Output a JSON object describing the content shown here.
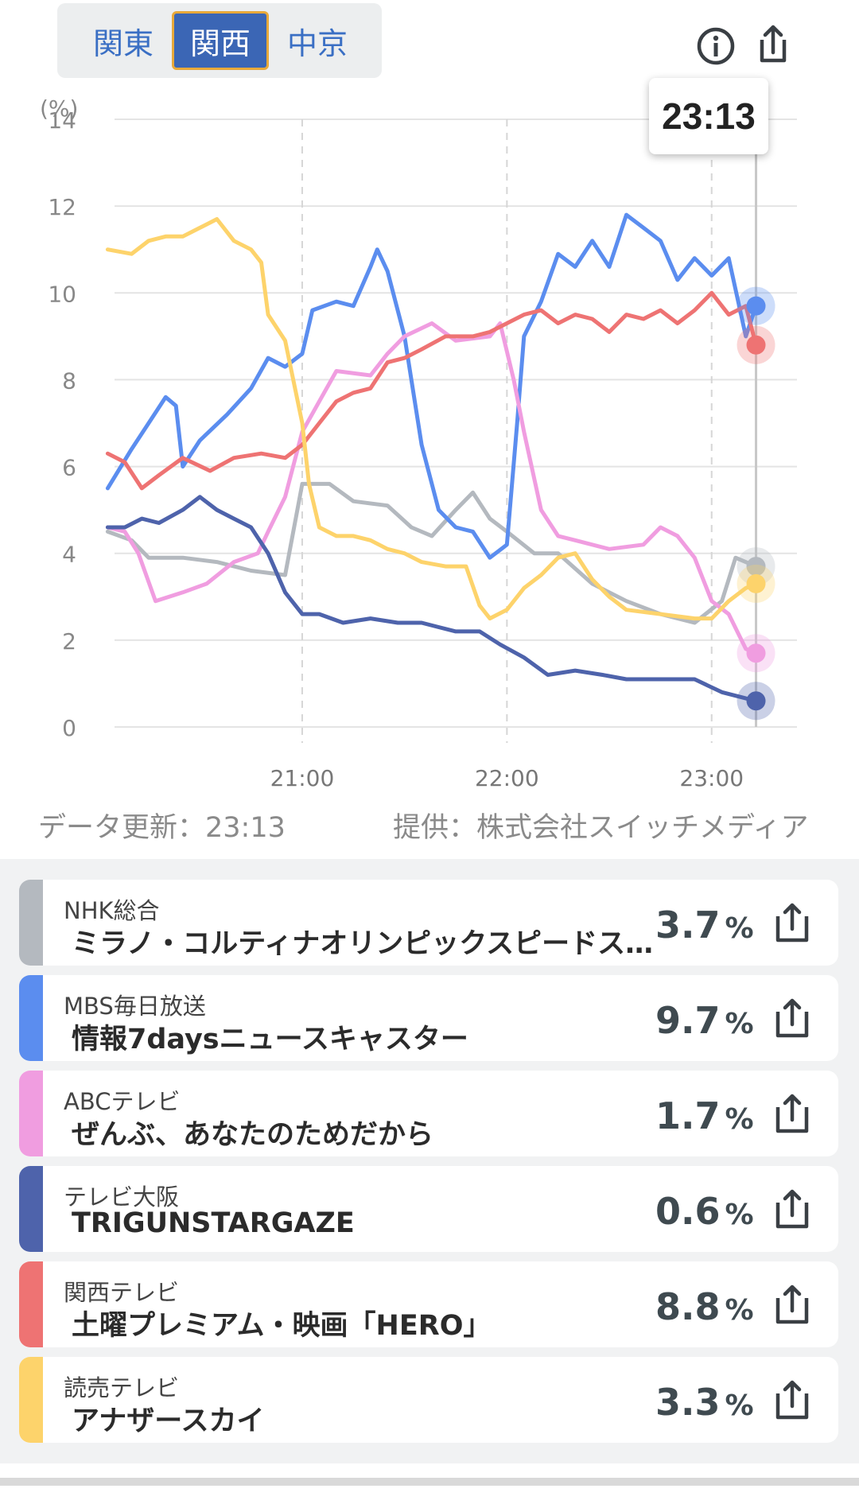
{
  "regions": {
    "tabs": [
      {
        "label": "関東",
        "active": false
      },
      {
        "label": "関西",
        "active": true
      },
      {
        "label": "中京",
        "active": false
      }
    ]
  },
  "tooltip": {
    "time": "23:13"
  },
  "chart_data": {
    "type": "line",
    "ylabel": "(%)",
    "ylim": [
      0,
      14
    ],
    "yticks": [
      0,
      2,
      4,
      6,
      8,
      10,
      12,
      14
    ],
    "xlim": [
      "20:05",
      "23:25"
    ],
    "xticks": [
      "21:00",
      "22:00",
      "23:00"
    ],
    "cursor_time": "23:13",
    "grid": true,
    "series": [
      {
        "name": "NHK総合",
        "color": "#b4b9bf",
        "points": [
          [
            "20:03",
            4.5
          ],
          [
            "20:10",
            4.3
          ],
          [
            "20:15",
            3.9
          ],
          [
            "20:25",
            3.9
          ],
          [
            "20:35",
            3.8
          ],
          [
            "20:45",
            3.6
          ],
          [
            "20:55",
            3.5
          ],
          [
            "21:00",
            5.6
          ],
          [
            "21:08",
            5.6
          ],
          [
            "21:15",
            5.2
          ],
          [
            "21:25",
            5.1
          ],
          [
            "21:32",
            4.6
          ],
          [
            "21:38",
            4.4
          ],
          [
            "21:45",
            5.0
          ],
          [
            "21:50",
            5.4
          ],
          [
            "21:55",
            4.8
          ],
          [
            "22:00",
            4.5
          ],
          [
            "22:08",
            4.0
          ],
          [
            "22:15",
            4.0
          ],
          [
            "22:25",
            3.3
          ],
          [
            "22:35",
            2.9
          ],
          [
            "22:45",
            2.6
          ],
          [
            "22:55",
            2.4
          ],
          [
            "23:03",
            2.9
          ],
          [
            "23:07",
            3.9
          ],
          [
            "23:13",
            3.7
          ]
        ]
      },
      {
        "name": "MBS毎日放送",
        "color": "#5b8def",
        "points": [
          [
            "20:03",
            5.5
          ],
          [
            "20:10",
            6.4
          ],
          [
            "20:15",
            7.0
          ],
          [
            "20:20",
            7.6
          ],
          [
            "20:23",
            7.4
          ],
          [
            "20:25",
            6.0
          ],
          [
            "20:30",
            6.6
          ],
          [
            "20:38",
            7.2
          ],
          [
            "20:45",
            7.8
          ],
          [
            "20:50",
            8.5
          ],
          [
            "20:55",
            8.3
          ],
          [
            "21:00",
            8.6
          ],
          [
            "21:03",
            9.6
          ],
          [
            "21:10",
            9.8
          ],
          [
            "21:15",
            9.7
          ],
          [
            "21:20",
            10.6
          ],
          [
            "21:22",
            11.0
          ],
          [
            "21:25",
            10.5
          ],
          [
            "21:30",
            9.0
          ],
          [
            "21:35",
            6.5
          ],
          [
            "21:40",
            5.0
          ],
          [
            "21:45",
            4.6
          ],
          [
            "21:50",
            4.5
          ],
          [
            "21:55",
            3.9
          ],
          [
            "22:00",
            4.2
          ],
          [
            "22:03",
            7.0
          ],
          [
            "22:05",
            9.0
          ],
          [
            "22:10",
            9.8
          ],
          [
            "22:15",
            10.9
          ],
          [
            "22:20",
            10.6
          ],
          [
            "22:25",
            11.2
          ],
          [
            "22:30",
            10.6
          ],
          [
            "22:35",
            11.8
          ],
          [
            "22:40",
            11.5
          ],
          [
            "22:45",
            11.2
          ],
          [
            "22:50",
            10.3
          ],
          [
            "22:55",
            10.8
          ],
          [
            "23:00",
            10.4
          ],
          [
            "23:05",
            10.8
          ],
          [
            "23:10",
            9.0
          ],
          [
            "23:13",
            9.7
          ]
        ]
      },
      {
        "name": "ABCテレビ",
        "color": "#f09de0",
        "points": [
          [
            "20:03",
            4.6
          ],
          [
            "20:08",
            4.5
          ],
          [
            "20:12",
            4.0
          ],
          [
            "20:17",
            2.9
          ],
          [
            "20:25",
            3.1
          ],
          [
            "20:32",
            3.3
          ],
          [
            "20:40",
            3.8
          ],
          [
            "20:47",
            4.0
          ],
          [
            "20:50",
            4.5
          ],
          [
            "20:55",
            5.3
          ],
          [
            "21:00",
            6.8
          ],
          [
            "21:05",
            7.5
          ],
          [
            "21:10",
            8.2
          ],
          [
            "21:20",
            8.1
          ],
          [
            "21:25",
            8.6
          ],
          [
            "21:30",
            9.0
          ],
          [
            "21:38",
            9.3
          ],
          [
            "21:45",
            8.9
          ],
          [
            "21:55",
            9.0
          ],
          [
            "21:58",
            9.3
          ],
          [
            "22:02",
            8.0
          ],
          [
            "22:05",
            6.8
          ],
          [
            "22:10",
            5.0
          ],
          [
            "22:15",
            4.4
          ],
          [
            "22:20",
            4.3
          ],
          [
            "22:30",
            4.1
          ],
          [
            "22:40",
            4.2
          ],
          [
            "22:45",
            4.6
          ],
          [
            "22:50",
            4.4
          ],
          [
            "22:55",
            3.9
          ],
          [
            "23:00",
            2.9
          ],
          [
            "23:05",
            2.6
          ],
          [
            "23:10",
            1.8
          ],
          [
            "23:13",
            1.7
          ]
        ]
      },
      {
        "name": "テレビ大阪",
        "color": "#4e63ab",
        "points": [
          [
            "20:03",
            4.6
          ],
          [
            "20:08",
            4.6
          ],
          [
            "20:13",
            4.8
          ],
          [
            "20:18",
            4.7
          ],
          [
            "20:25",
            5.0
          ],
          [
            "20:30",
            5.3
          ],
          [
            "20:35",
            5.0
          ],
          [
            "20:40",
            4.8
          ],
          [
            "20:45",
            4.6
          ],
          [
            "20:50",
            4.0
          ],
          [
            "20:55",
            3.1
          ],
          [
            "21:00",
            2.6
          ],
          [
            "21:05",
            2.6
          ],
          [
            "21:12",
            2.4
          ],
          [
            "21:20",
            2.5
          ],
          [
            "21:28",
            2.4
          ],
          [
            "21:35",
            2.4
          ],
          [
            "21:40",
            2.3
          ],
          [
            "21:45",
            2.2
          ],
          [
            "21:52",
            2.2
          ],
          [
            "21:58",
            1.9
          ],
          [
            "22:05",
            1.6
          ],
          [
            "22:12",
            1.2
          ],
          [
            "22:20",
            1.3
          ],
          [
            "22:28",
            1.2
          ],
          [
            "22:35",
            1.1
          ],
          [
            "22:45",
            1.1
          ],
          [
            "22:55",
            1.1
          ],
          [
            "23:03",
            0.8
          ],
          [
            "23:08",
            0.7
          ],
          [
            "23:13",
            0.6
          ]
        ]
      },
      {
        "name": "関西テレビ",
        "color": "#ee7373",
        "points": [
          [
            "20:03",
            6.3
          ],
          [
            "20:08",
            6.1
          ],
          [
            "20:13",
            5.5
          ],
          [
            "20:18",
            5.8
          ],
          [
            "20:25",
            6.2
          ],
          [
            "20:33",
            5.9
          ],
          [
            "20:40",
            6.2
          ],
          [
            "20:48",
            6.3
          ],
          [
            "20:55",
            6.2
          ],
          [
            "21:00",
            6.5
          ],
          [
            "21:05",
            7.0
          ],
          [
            "21:10",
            7.5
          ],
          [
            "21:15",
            7.7
          ],
          [
            "21:20",
            7.8
          ],
          [
            "21:25",
            8.4
          ],
          [
            "21:30",
            8.5
          ],
          [
            "21:35",
            8.7
          ],
          [
            "21:42",
            9.0
          ],
          [
            "21:50",
            9.0
          ],
          [
            "21:55",
            9.1
          ],
          [
            "22:00",
            9.3
          ],
          [
            "22:05",
            9.5
          ],
          [
            "22:10",
            9.6
          ],
          [
            "22:15",
            9.3
          ],
          [
            "22:20",
            9.5
          ],
          [
            "22:25",
            9.4
          ],
          [
            "22:30",
            9.1
          ],
          [
            "22:35",
            9.5
          ],
          [
            "22:40",
            9.4
          ],
          [
            "22:45",
            9.6
          ],
          [
            "22:50",
            9.3
          ],
          [
            "22:55",
            9.6
          ],
          [
            "23:00",
            10.0
          ],
          [
            "23:05",
            9.5
          ],
          [
            "23:10",
            9.7
          ],
          [
            "23:13",
            8.8
          ]
        ]
      },
      {
        "name": "読売テレビ",
        "color": "#fdd36b",
        "points": [
          [
            "20:03",
            11.0
          ],
          [
            "20:10",
            10.9
          ],
          [
            "20:15",
            11.2
          ],
          [
            "20:20",
            11.3
          ],
          [
            "20:25",
            11.3
          ],
          [
            "20:30",
            11.5
          ],
          [
            "20:35",
            11.7
          ],
          [
            "20:40",
            11.2
          ],
          [
            "20:45",
            11.0
          ],
          [
            "20:48",
            10.7
          ],
          [
            "20:50",
            9.5
          ],
          [
            "20:55",
            8.9
          ],
          [
            "21:00",
            7.0
          ],
          [
            "21:02",
            5.6
          ],
          [
            "21:05",
            4.6
          ],
          [
            "21:10",
            4.4
          ],
          [
            "21:15",
            4.4
          ],
          [
            "21:20",
            4.3
          ],
          [
            "21:25",
            4.1
          ],
          [
            "21:30",
            4.0
          ],
          [
            "21:35",
            3.8
          ],
          [
            "21:42",
            3.7
          ],
          [
            "21:48",
            3.7
          ],
          [
            "21:52",
            2.8
          ],
          [
            "21:55",
            2.5
          ],
          [
            "22:00",
            2.7
          ],
          [
            "22:05",
            3.2
          ],
          [
            "22:10",
            3.5
          ],
          [
            "22:15",
            3.9
          ],
          [
            "22:20",
            4.0
          ],
          [
            "22:25",
            3.4
          ],
          [
            "22:30",
            3.0
          ],
          [
            "22:35",
            2.7
          ],
          [
            "22:45",
            2.6
          ],
          [
            "22:55",
            2.5
          ],
          [
            "23:00",
            2.5
          ],
          [
            "23:05",
            2.9
          ],
          [
            "23:10",
            3.2
          ],
          [
            "23:13",
            3.3
          ]
        ]
      }
    ]
  },
  "footer": {
    "updated": "データ更新：23:13",
    "source": "提供：株式会社スイッチメディア"
  },
  "channels": [
    {
      "channel": "NHK総合",
      "program": "ミラノ・コルティナオリンピックスピードスケート",
      "rate": "3.7",
      "unit": "%",
      "color": "#b4b9bf"
    },
    {
      "channel": "MBS毎日放送",
      "program": "情報7daysニュースキャスター",
      "rate": "9.7",
      "unit": "%",
      "color": "#5b8def"
    },
    {
      "channel": "ABCテレビ",
      "program": "ぜんぶ、あなたのためだから",
      "rate": "1.7",
      "unit": "%",
      "color": "#f09de0"
    },
    {
      "channel": "テレビ大阪",
      "program": "TRIGUNSTARGAZE",
      "rate": "0.6",
      "unit": "%",
      "color": "#4e63ab"
    },
    {
      "channel": "関西テレビ",
      "program": "土曜プレミアム・映画「HERO」",
      "rate": "8.8",
      "unit": "%",
      "color": "#ee7373"
    },
    {
      "channel": "読売テレビ",
      "program": "アナザースカイ",
      "rate": "3.3",
      "unit": "%",
      "color": "#fdd36b"
    }
  ]
}
